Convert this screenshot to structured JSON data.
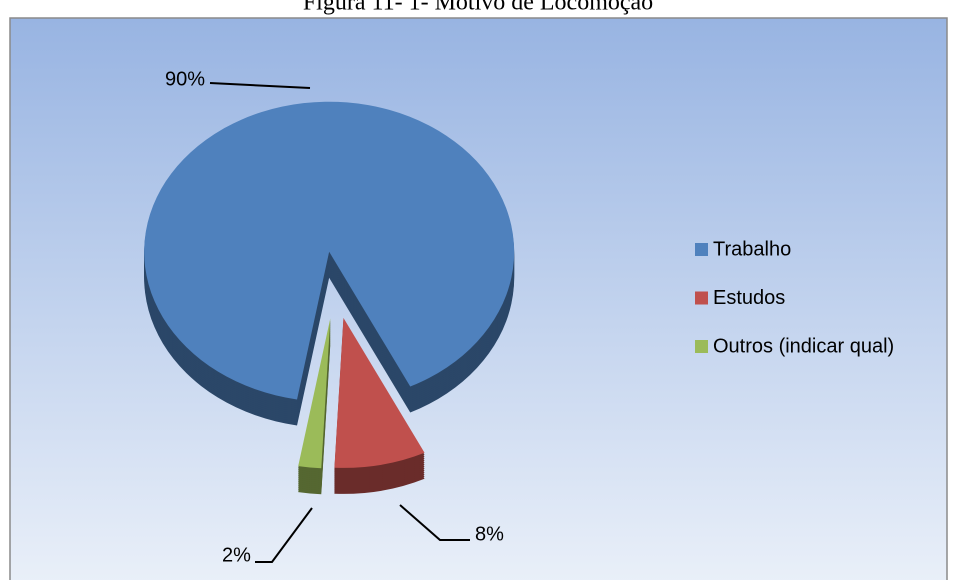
{
  "chart_data": {
    "type": "pie",
    "title": "Figura 11- 1- Motivo de Locomoção",
    "categories": [
      "Trabalho",
      "Estudos",
      "Outros  (indicar qual)"
    ],
    "values": [
      90,
      8,
      2
    ],
    "value_labels": [
      "90%",
      "8%",
      "2%"
    ],
    "colors": [
      "#4f81bd",
      "#c0504d",
      "#9bbb59"
    ],
    "legend": "right",
    "three_d": true,
    "exploded": true
  }
}
